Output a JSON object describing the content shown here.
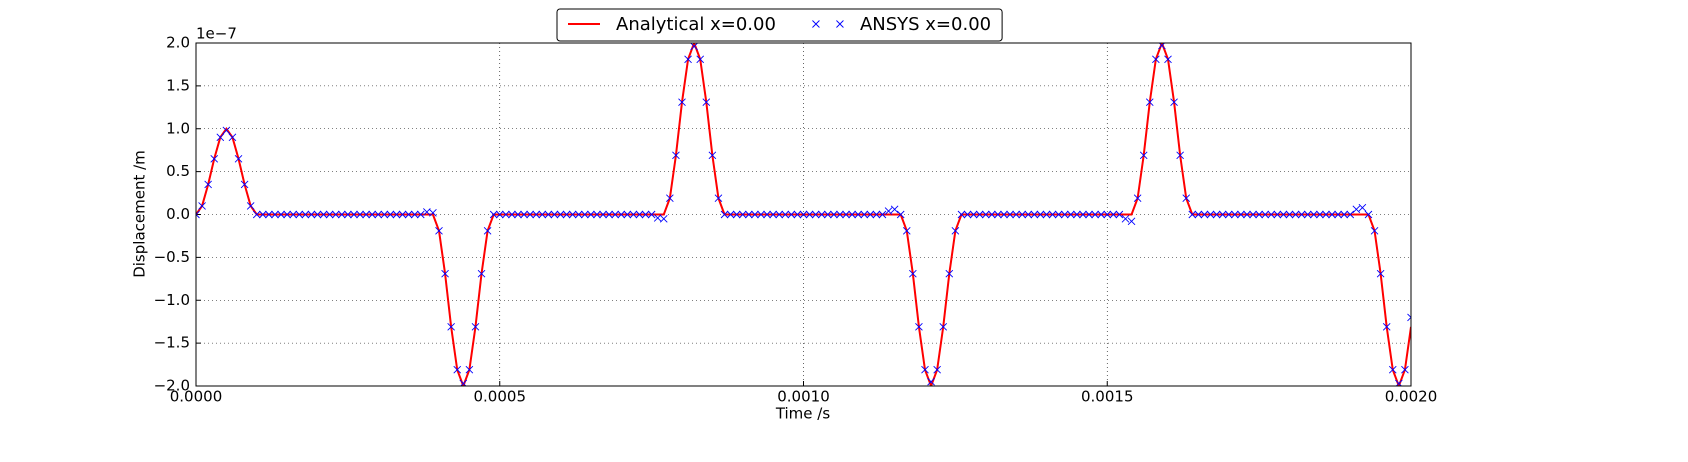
{
  "chart_data": {
    "type": "line",
    "xlabel": "Time /s",
    "ylabel": "Displacement /m",
    "y_offset_label": "1e−7",
    "xlim": [
      0,
      0.002
    ],
    "ylim": [
      -2,
      2
    ],
    "xticks": [
      {
        "value": 0,
        "label": "0.0000"
      },
      {
        "value": 0.0005,
        "label": "0.0005"
      },
      {
        "value": 0.001,
        "label": "0.0010"
      },
      {
        "value": 0.0015,
        "label": "0.0015"
      },
      {
        "value": 0.002,
        "label": "0.0020"
      }
    ],
    "yticks": [
      {
        "value": -2,
        "label": "−2.0"
      },
      {
        "value": -1.5,
        "label": "−1.5"
      },
      {
        "value": -1,
        "label": "−1.0"
      },
      {
        "value": -0.5,
        "label": "−0.5"
      },
      {
        "value": 0,
        "label": "0.0"
      },
      {
        "value": 0.5,
        "label": "0.5"
      },
      {
        "value": 1,
        "label": "1.0"
      },
      {
        "value": 1.5,
        "label": "1.5"
      },
      {
        "value": 2,
        "label": "2.0"
      }
    ],
    "grid": true,
    "legend": "top",
    "x": [
      0,
      1e-05,
      2e-05,
      3e-05,
      4e-05,
      5e-05,
      6e-05,
      7e-05,
      8e-05,
      9e-05,
      0.0001,
      0.00011,
      0.00012,
      0.00013,
      0.00014,
      0.00015,
      0.00016,
      0.00017,
      0.00018,
      0.00019,
      0.0002,
      0.00021,
      0.00022,
      0.00023,
      0.00024,
      0.00025,
      0.00026,
      0.00027,
      0.00028,
      0.00029,
      0.0003,
      0.00031,
      0.00032,
      0.00033,
      0.00034,
      0.00035,
      0.00036,
      0.00037,
      0.00038,
      0.00039,
      0.0004,
      0.00041,
      0.00042,
      0.00043,
      0.00044,
      0.00045,
      0.00046,
      0.00047,
      0.00048,
      0.00049,
      0.0005,
      0.00051,
      0.00052,
      0.00053,
      0.00054,
      0.00055,
      0.00056,
      0.00057,
      0.00058,
      0.00059,
      0.0006,
      0.00061,
      0.00062,
      0.00063,
      0.00064,
      0.00065,
      0.00066,
      0.00067,
      0.00068,
      0.00069,
      0.0007,
      0.00071,
      0.00072,
      0.00073,
      0.00074,
      0.00075,
      0.00076,
      0.00077,
      0.00078,
      0.00079,
      0.0008,
      0.00081,
      0.00082,
      0.00083,
      0.00084,
      0.00085,
      0.00086,
      0.00087,
      0.00088,
      0.00089,
      0.0009,
      0.00091,
      0.00092,
      0.00093,
      0.00094,
      0.00095,
      0.00096,
      0.00097,
      0.00098,
      0.00099,
      0.001,
      0.00101,
      0.00102,
      0.00103,
      0.00104,
      0.00105,
      0.00106,
      0.00107,
      0.00108,
      0.00109,
      0.0011,
      0.00111,
      0.00112,
      0.00113,
      0.00114,
      0.00115,
      0.00116,
      0.00117,
      0.00118,
      0.00119,
      0.0012,
      0.00121,
      0.00122,
      0.00123,
      0.00124,
      0.00125,
      0.00126,
      0.00127,
      0.00128,
      0.00129,
      0.0013,
      0.00131,
      0.00132,
      0.00133,
      0.00134,
      0.00135,
      0.00136,
      0.00137,
      0.00138,
      0.00139,
      0.0014,
      0.00141,
      0.00142,
      0.00143,
      0.00144,
      0.00145,
      0.00146,
      0.00147,
      0.00148,
      0.00149,
      0.0015,
      0.00151,
      0.00152,
      0.00153,
      0.00154,
      0.00155,
      0.00156,
      0.00157,
      0.00158,
      0.00159,
      0.0016,
      0.00161,
      0.00162,
      0.00163,
      0.00164,
      0.00165,
      0.00166,
      0.00167,
      0.00168,
      0.00169,
      0.0017,
      0.00171,
      0.00172,
      0.00173,
      0.00174,
      0.00175,
      0.00176,
      0.00177,
      0.00178,
      0.00179,
      0.0018,
      0.00181,
      0.00182,
      0.00183,
      0.00184,
      0.00185,
      0.00186,
      0.00187,
      0.00188,
      0.00189,
      0.0019,
      0.00191,
      0.00192,
      0.00193,
      0.00194,
      0.00195,
      0.00196,
      0.00197,
      0.00198,
      0.00199,
      0.002
    ],
    "series": [
      {
        "name": "Analytical x=0.00",
        "color": "#ff0000",
        "mode": "line",
        "values": [
          0,
          0.1,
          0.35,
          0.65,
          0.9,
          1,
          0.9,
          0.65,
          0.35,
          0.1,
          0,
          0,
          0,
          0,
          0,
          0,
          0,
          0,
          0,
          0,
          0,
          0,
          0,
          0,
          0,
          0,
          0,
          0,
          0,
          0,
          0,
          0,
          0,
          0,
          0,
          0,
          0,
          0,
          0,
          0,
          -0.19,
          -0.69,
          -1.31,
          -1.81,
          -2,
          -1.81,
          -1.31,
          -0.69,
          -0.19,
          0,
          0,
          0,
          0,
          0,
          0,
          0,
          0,
          0,
          0,
          0,
          0,
          0,
          0,
          0,
          0,
          0,
          0,
          0,
          0,
          0,
          0,
          0,
          0,
          0,
          0,
          0,
          0,
          0,
          0.19,
          0.69,
          1.31,
          1.81,
          2,
          1.81,
          1.31,
          0.69,
          0.19,
          0,
          0,
          0,
          0,
          0,
          0,
          0,
          0,
          0,
          0,
          0,
          0,
          0,
          0,
          0,
          0,
          0,
          0,
          0,
          0,
          0,
          0,
          0,
          0,
          0,
          0,
          0,
          0,
          0,
          0,
          -0.19,
          -0.69,
          -1.31,
          -1.81,
          -2,
          -1.81,
          -1.31,
          -0.69,
          -0.19,
          0,
          0,
          0,
          0,
          0,
          0,
          0,
          0,
          0,
          0,
          0,
          0,
          0,
          0,
          0,
          0,
          0,
          0,
          0,
          0,
          0,
          0,
          0,
          0,
          0,
          0,
          0,
          0,
          0,
          0.19,
          0.69,
          1.31,
          1.81,
          2,
          1.81,
          1.31,
          0.69,
          0.19,
          0,
          0,
          0,
          0,
          0,
          0,
          0,
          0,
          0,
          0,
          0,
          0,
          0,
          0,
          0,
          0,
          0,
          0,
          0,
          0,
          0,
          0,
          0,
          0,
          0,
          0,
          0,
          0,
          0,
          0,
          -0.19,
          -0.69,
          -1.31,
          -1.81,
          -2,
          -1.81,
          -1.31
        ]
      },
      {
        "name": "ANSYS x=0.00",
        "color": "#0000ff",
        "mode": "scatter",
        "values": [
          0,
          0.1,
          0.35,
          0.65,
          0.9,
          0.98,
          0.9,
          0.65,
          0.35,
          0.1,
          0,
          0,
          0,
          0,
          0,
          0,
          0,
          0,
          0,
          0,
          0,
          0,
          0,
          0,
          0,
          0,
          0,
          0,
          0,
          0,
          0,
          0,
          0,
          0,
          0,
          0,
          0,
          0,
          0.03,
          0.02,
          -0.19,
          -0.69,
          -1.31,
          -1.81,
          -1.97,
          -1.81,
          -1.31,
          -0.69,
          -0.19,
          0,
          0,
          0,
          0,
          0,
          0,
          0,
          0,
          0,
          0,
          0,
          0,
          0,
          0,
          0,
          0,
          0,
          0,
          0,
          0,
          0,
          0,
          0,
          0,
          0,
          0,
          0,
          -0.04,
          -0.05,
          0.19,
          0.69,
          1.31,
          1.81,
          1.96,
          1.81,
          1.31,
          0.69,
          0.19,
          0,
          0,
          0,
          0,
          0,
          0,
          0,
          0,
          0,
          0,
          0,
          0,
          0,
          0,
          0,
          0,
          0,
          0,
          0,
          0,
          0,
          0,
          0,
          0,
          0,
          0,
          0,
          0.04,
          0.06,
          0,
          -0.19,
          -0.69,
          -1.31,
          -1.81,
          -1.95,
          -1.81,
          -1.31,
          -0.69,
          -0.19,
          0,
          0,
          0,
          0,
          0,
          0,
          0,
          0,
          0,
          0,
          0,
          0,
          0,
          0,
          0,
          0,
          0,
          0,
          0,
          0,
          0,
          0,
          0,
          0,
          0,
          0,
          0,
          -0.05,
          -0.08,
          0.19,
          0.69,
          1.31,
          1.81,
          1.97,
          1.81,
          1.31,
          0.69,
          0.19,
          0,
          0,
          0,
          0,
          0,
          0,
          0,
          0,
          0,
          0,
          0,
          0,
          0,
          0,
          0,
          0,
          0,
          0,
          0,
          0,
          0,
          0,
          0,
          0,
          0,
          0,
          0,
          0.06,
          0.08,
          0,
          -0.19,
          -0.69,
          -1.31,
          -1.81,
          -1.97,
          -1.81,
          -1.2
        ]
      }
    ]
  }
}
